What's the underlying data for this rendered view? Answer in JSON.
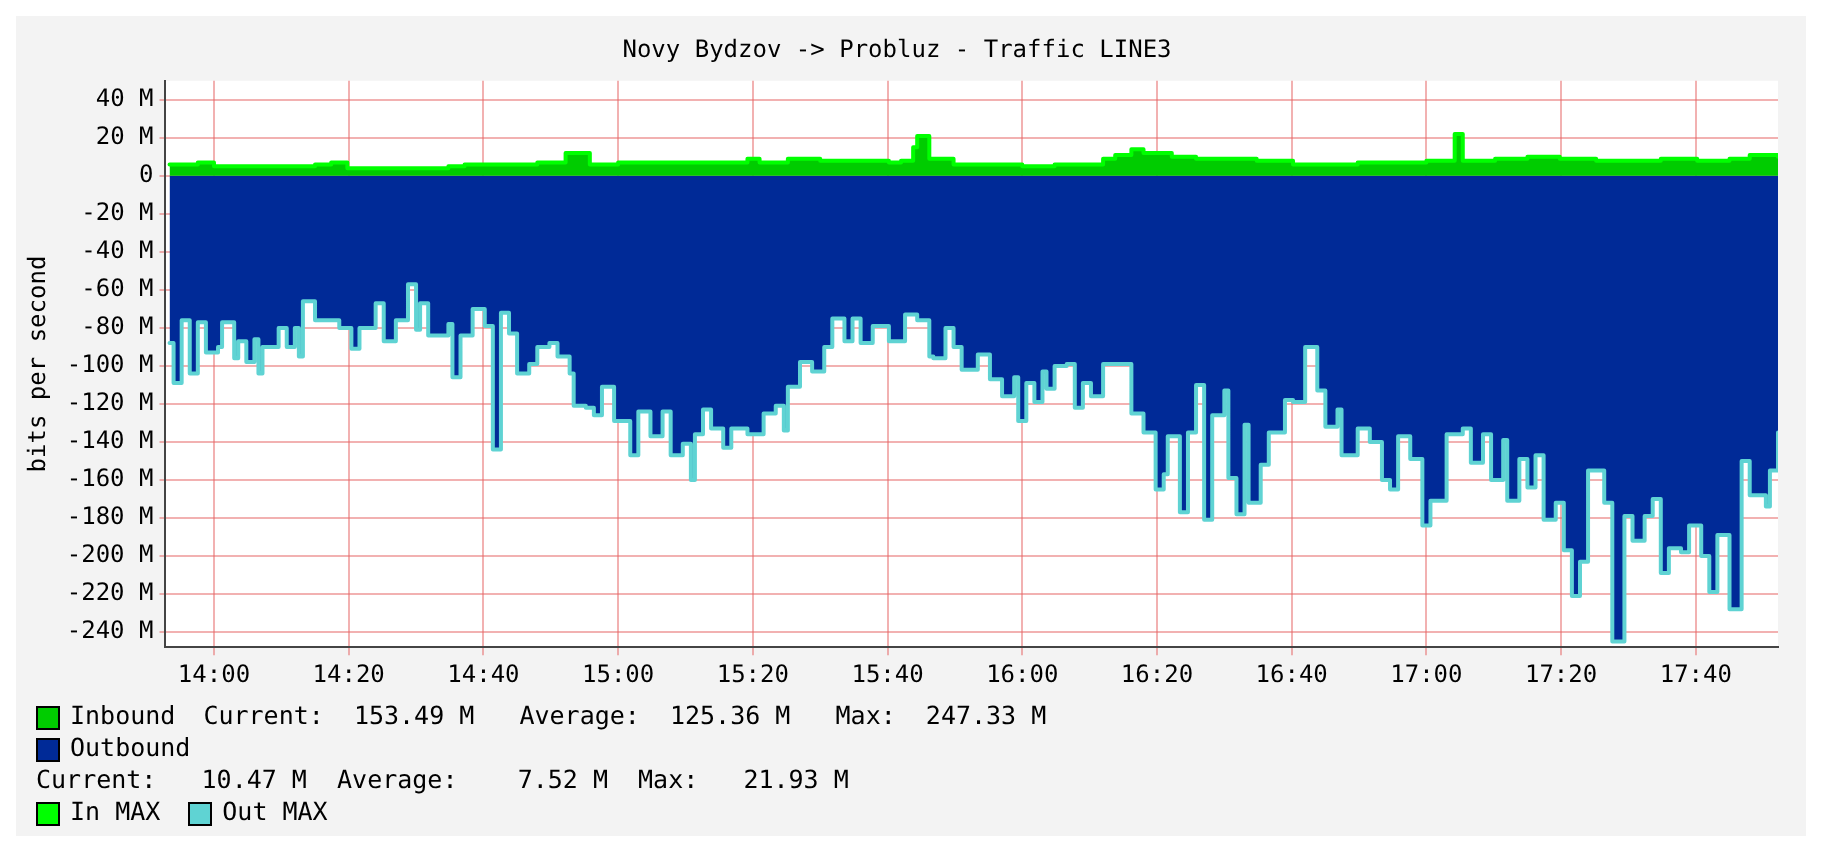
{
  "chart_data": {
    "type": "area",
    "title": "Novy Bydzov -> Probluz - Traffic LINE3",
    "ylabel": "bits per second",
    "xlim": [
      13.88,
      17.87
    ],
    "xticks": [
      {
        "value": 14,
        "label": "14:00"
      },
      {
        "value": 14.3333,
        "label": "14:20"
      },
      {
        "value": 14.6667,
        "label": "14:40"
      },
      {
        "value": 15,
        "label": "15:00"
      },
      {
        "value": 15.3333,
        "label": "15:20"
      },
      {
        "value": 15.6667,
        "label": "15:40"
      },
      {
        "value": 16,
        "label": "16:00"
      },
      {
        "value": 16.3333,
        "label": "16:20"
      },
      {
        "value": 16.6667,
        "label": "16:40"
      },
      {
        "value": 17,
        "label": "17:00"
      },
      {
        "value": 17.3333,
        "label": "17:20"
      },
      {
        "value": 17.6667,
        "label": "17:40"
      }
    ],
    "ylim": [
      -248,
      50
    ],
    "yticks": [
      {
        "value": 40,
        "label": "40 M"
      },
      {
        "value": 20,
        "label": "20 M"
      },
      0,
      {
        "value": -20,
        "label": "-20 M"
      },
      {
        "value": -40,
        "label": "-40 M"
      },
      {
        "value": -60,
        "label": "-60 M"
      },
      {
        "value": -80,
        "label": "-80 M"
      },
      {
        "value": -100,
        "label": "-100 M"
      },
      {
        "value": -120,
        "label": "-120 M"
      },
      {
        "value": -140,
        "label": "-140 M"
      },
      {
        "value": -160,
        "label": "-160 M"
      },
      {
        "value": -180,
        "label": "-180 M"
      },
      {
        "value": -200,
        "label": "-200 M"
      },
      {
        "value": -220,
        "label": "-220 M"
      },
      {
        "value": -240,
        "label": "-240 M"
      }
    ],
    "grid": true,
    "legend": "bottom",
    "annotations": [
      "Current:  153.49 M   Average:  125.36 M   Max:  247.33 M",
      "Current:   10.47 M  Average:    7.52 M  Max:   21.93 M"
    ],
    "series": [
      {
        "name": "Inbound",
        "color": "#00cc00",
        "x": [
          13.89,
          13.96,
          14.0,
          14.08,
          14.17,
          14.25,
          14.29,
          14.33,
          14.42,
          14.5,
          14.58,
          14.62,
          14.67,
          14.75,
          14.8,
          14.87,
          14.9,
          14.93,
          15.0,
          15.08,
          15.17,
          15.25,
          15.32,
          15.35,
          15.42,
          15.47,
          15.5,
          15.58,
          15.67,
          15.7,
          15.73,
          15.74,
          15.77,
          15.83,
          15.92,
          16.0,
          16.08,
          16.17,
          16.2,
          16.23,
          16.27,
          16.3,
          16.37,
          16.43,
          16.5,
          16.58,
          16.67,
          16.75,
          16.83,
          16.92,
          17.0,
          17.05,
          17.07,
          17.09,
          17.17,
          17.25,
          17.33,
          17.42,
          17.5,
          17.58,
          17.67,
          17.75,
          17.8,
          17.87
        ],
        "values": [
          6,
          7,
          5,
          5,
          5,
          6,
          7,
          4,
          4,
          4,
          5,
          6,
          6,
          6,
          7,
          12,
          12,
          6,
          7,
          7,
          7,
          7,
          9,
          7,
          9,
          9,
          8,
          8,
          7,
          8,
          15,
          21,
          9,
          6,
          6,
          5,
          6,
          6,
          9,
          11,
          14,
          12,
          10,
          9,
          9,
          8,
          6,
          6,
          7,
          7,
          8,
          8,
          22,
          8,
          9,
          10,
          9,
          8,
          8,
          9,
          8,
          9,
          11,
          10
        ]
      },
      {
        "name": "Outbound",
        "color": "#002a97",
        "x": [
          13.89,
          13.9,
          13.92,
          13.94,
          13.96,
          13.98,
          14.01,
          14.02,
          14.05,
          14.06,
          14.08,
          14.1,
          14.11,
          14.12,
          14.16,
          14.18,
          14.2,
          14.21,
          14.22,
          14.25,
          14.29,
          14.31,
          14.34,
          14.36,
          14.4,
          14.42,
          14.45,
          14.48,
          14.5,
          14.51,
          14.53,
          14.58,
          14.59,
          14.61,
          14.64,
          14.67,
          14.69,
          14.71,
          14.73,
          14.75,
          14.78,
          14.8,
          14.83,
          14.85,
          14.88,
          14.89,
          14.92,
          14.94,
          14.96,
          14.99,
          15.03,
          15.05,
          15.08,
          15.11,
          15.13,
          15.16,
          15.18,
          15.19,
          15.21,
          15.23,
          15.26,
          15.28,
          15.32,
          15.34,
          15.36,
          15.39,
          15.41,
          15.42,
          15.45,
          15.48,
          15.51,
          15.53,
          15.56,
          15.58,
          15.6,
          15.63,
          15.67,
          15.71,
          15.74,
          15.77,
          15.78,
          15.81,
          15.83,
          15.85,
          15.89,
          15.92,
          15.95,
          15.98,
          15.99,
          16.01,
          16.03,
          16.05,
          16.06,
          16.08,
          16.11,
          16.13,
          16.15,
          16.17,
          16.2,
          16.25,
          16.27,
          16.3,
          16.33,
          16.35,
          16.36,
          16.39,
          16.41,
          16.43,
          16.45,
          16.47,
          16.5,
          16.51,
          16.53,
          16.55,
          16.56,
          16.59,
          16.61,
          16.65,
          16.67,
          16.7,
          16.73,
          16.75,
          16.78,
          16.79,
          16.83,
          16.86,
          16.89,
          16.91,
          16.93,
          16.96,
          16.99,
          17.01,
          17.05,
          17.09,
          17.11,
          17.14,
          17.16,
          17.19,
          17.2,
          17.23,
          17.25,
          17.27,
          17.29,
          17.32,
          17.34,
          17.36,
          17.38,
          17.4,
          17.44,
          17.46,
          17.49,
          17.51,
          17.54,
          17.56,
          17.58,
          17.6,
          17.63,
          17.65,
          17.68,
          17.7,
          17.72,
          17.75,
          17.78,
          17.8,
          17.84,
          17.85,
          17.87
        ],
        "values": [
          -88,
          -109,
          -76,
          -104,
          -77,
          -93,
          -90,
          -77,
          -96,
          -87,
          -98,
          -86,
          -104,
          -90,
          -80,
          -90,
          -80,
          -95,
          -66,
          -76,
          -76,
          -80,
          -91,
          -80,
          -67,
          -87,
          -76,
          -57,
          -81,
          -67,
          -84,
          -78,
          -106,
          -84,
          -70,
          -79,
          -144,
          -72,
          -83,
          -104,
          -99,
          -90,
          -88,
          -95,
          -104,
          -121,
          -122,
          -126,
          -111,
          -129,
          -147,
          -124,
          -137,
          -124,
          -147,
          -141,
          -160,
          -136,
          -123,
          -133,
          -143,
          -133,
          -136,
          -136,
          -125,
          -121,
          -134,
          -111,
          -98,
          -103,
          -90,
          -75,
          -87,
          -75,
          -88,
          -79,
          -87,
          -73,
          -76,
          -95,
          -96,
          -80,
          -90,
          -102,
          -94,
          -107,
          -116,
          -106,
          -129,
          -109,
          -119,
          -103,
          -112,
          -100,
          -99,
          -122,
          -109,
          -116,
          -99,
          -99,
          -125,
          -135,
          -165,
          -157,
          -137,
          -177,
          -135,
          -110,
          -181,
          -126,
          -113,
          -159,
          -178,
          -131,
          -172,
          -152,
          -135,
          -118,
          -119,
          -90,
          -113,
          -132,
          -123,
          -147,
          -133,
          -140,
          -160,
          -165,
          -137,
          -149,
          -184,
          -171,
          -136,
          -133,
          -151,
          -136,
          -160,
          -139,
          -171,
          -149,
          -164,
          -147,
          -181,
          -172,
          -197,
          -221,
          -203,
          -155,
          -172,
          -245,
          -179,
          -192,
          -179,
          -170,
          -209,
          -196,
          -198,
          -184,
          -200,
          -219,
          -189,
          -228,
          -150,
          -168,
          -174,
          -155,
          -135
        ]
      },
      {
        "name": "In MAX",
        "type": "step",
        "color": "#00ff00",
        "x": [
          13.89,
          13.96,
          14.0,
          14.08,
          14.17,
          14.25,
          14.29,
          14.33,
          14.42,
          14.5,
          14.58,
          14.62,
          14.67,
          14.75,
          14.8,
          14.87,
          14.9,
          14.93,
          15.0,
          15.08,
          15.17,
          15.25,
          15.32,
          15.35,
          15.42,
          15.47,
          15.5,
          15.58,
          15.67,
          15.7,
          15.73,
          15.74,
          15.77,
          15.83,
          15.92,
          16.0,
          16.08,
          16.17,
          16.2,
          16.23,
          16.27,
          16.3,
          16.37,
          16.43,
          16.5,
          16.58,
          16.67,
          16.75,
          16.83,
          16.92,
          17.0,
          17.05,
          17.07,
          17.09,
          17.17,
          17.25,
          17.33,
          17.42,
          17.5,
          17.58,
          17.67,
          17.75,
          17.8,
          17.87
        ],
        "values": [
          6,
          7,
          5,
          5,
          5,
          6,
          7,
          4,
          4,
          4,
          5,
          6,
          6,
          6,
          7,
          12,
          12,
          6,
          7,
          7,
          7,
          7,
          9,
          7,
          9,
          9,
          8,
          8,
          7,
          8,
          15,
          21,
          9,
          6,
          6,
          5,
          6,
          6,
          9,
          11,
          14,
          12,
          10,
          9,
          9,
          8,
          6,
          6,
          7,
          7,
          8,
          8,
          22,
          8,
          9,
          10,
          9,
          8,
          8,
          9,
          8,
          9,
          11,
          10
        ]
      },
      {
        "name": "Out MAX",
        "type": "step",
        "color": "#5fd3d3",
        "x": [
          13.89,
          13.9,
          13.92,
          13.94,
          13.96,
          13.98,
          14.01,
          14.02,
          14.05,
          14.06,
          14.08,
          14.1,
          14.11,
          14.12,
          14.16,
          14.18,
          14.2,
          14.21,
          14.22,
          14.25,
          14.29,
          14.31,
          14.34,
          14.36,
          14.4,
          14.42,
          14.45,
          14.48,
          14.5,
          14.51,
          14.53,
          14.58,
          14.59,
          14.61,
          14.64,
          14.67,
          14.69,
          14.71,
          14.73,
          14.75,
          14.78,
          14.8,
          14.83,
          14.85,
          14.88,
          14.89,
          14.92,
          14.94,
          14.96,
          14.99,
          15.03,
          15.05,
          15.08,
          15.11,
          15.13,
          15.16,
          15.18,
          15.19,
          15.21,
          15.23,
          15.26,
          15.28,
          15.32,
          15.34,
          15.36,
          15.39,
          15.41,
          15.42,
          15.45,
          15.48,
          15.51,
          15.53,
          15.56,
          15.58,
          15.6,
          15.63,
          15.67,
          15.71,
          15.74,
          15.77,
          15.78,
          15.81,
          15.83,
          15.85,
          15.89,
          15.92,
          15.95,
          15.98,
          15.99,
          16.01,
          16.03,
          16.05,
          16.06,
          16.08,
          16.11,
          16.13,
          16.15,
          16.17,
          16.2,
          16.25,
          16.27,
          16.3,
          16.33,
          16.35,
          16.36,
          16.39,
          16.41,
          16.43,
          16.45,
          16.47,
          16.5,
          16.51,
          16.53,
          16.55,
          16.56,
          16.59,
          16.61,
          16.65,
          16.67,
          16.7,
          16.73,
          16.75,
          16.78,
          16.79,
          16.83,
          16.86,
          16.89,
          16.91,
          16.93,
          16.96,
          16.99,
          17.01,
          17.05,
          17.09,
          17.11,
          17.14,
          17.16,
          17.19,
          17.2,
          17.23,
          17.25,
          17.27,
          17.29,
          17.32,
          17.34,
          17.36,
          17.38,
          17.4,
          17.44,
          17.46,
          17.49,
          17.51,
          17.54,
          17.56,
          17.58,
          17.6,
          17.63,
          17.65,
          17.68,
          17.7,
          17.72,
          17.75,
          17.78,
          17.8,
          17.84,
          17.85,
          17.87
        ],
        "values": [
          -88,
          -109,
          -76,
          -104,
          -77,
          -93,
          -90,
          -77,
          -96,
          -87,
          -98,
          -86,
          -104,
          -90,
          -80,
          -90,
          -80,
          -95,
          -66,
          -76,
          -76,
          -80,
          -91,
          -80,
          -67,
          -87,
          -76,
          -57,
          -81,
          -67,
          -84,
          -78,
          -106,
          -84,
          -70,
          -79,
          -144,
          -72,
          -83,
          -104,
          -99,
          -90,
          -88,
          -95,
          -104,
          -121,
          -122,
          -126,
          -111,
          -129,
          -147,
          -124,
          -137,
          -124,
          -147,
          -141,
          -160,
          -136,
          -123,
          -133,
          -143,
          -133,
          -136,
          -136,
          -125,
          -121,
          -134,
          -111,
          -98,
          -103,
          -90,
          -75,
          -87,
          -75,
          -88,
          -79,
          -87,
          -73,
          -76,
          -95,
          -96,
          -80,
          -90,
          -102,
          -94,
          -107,
          -116,
          -106,
          -129,
          -109,
          -119,
          -103,
          -112,
          -100,
          -99,
          -122,
          -109,
          -116,
          -99,
          -99,
          -125,
          -135,
          -165,
          -157,
          -137,
          -177,
          -135,
          -110,
          -181,
          -126,
          -113,
          -159,
          -178,
          -131,
          -172,
          -152,
          -135,
          -118,
          -119,
          -90,
          -113,
          -132,
          -123,
          -147,
          -133,
          -140,
          -160,
          -165,
          -137,
          -149,
          -184,
          -171,
          -136,
          -133,
          -151,
          -136,
          -160,
          -139,
          -171,
          -149,
          -164,
          -147,
          -181,
          -172,
          -197,
          -221,
          -203,
          -155,
          -172,
          -245,
          -179,
          -192,
          -179,
          -170,
          -209,
          -196,
          -198,
          -184,
          -200,
          -219,
          -189,
          -228,
          -150,
          -168,
          -174,
          -155,
          -135
        ]
      }
    ]
  }
}
